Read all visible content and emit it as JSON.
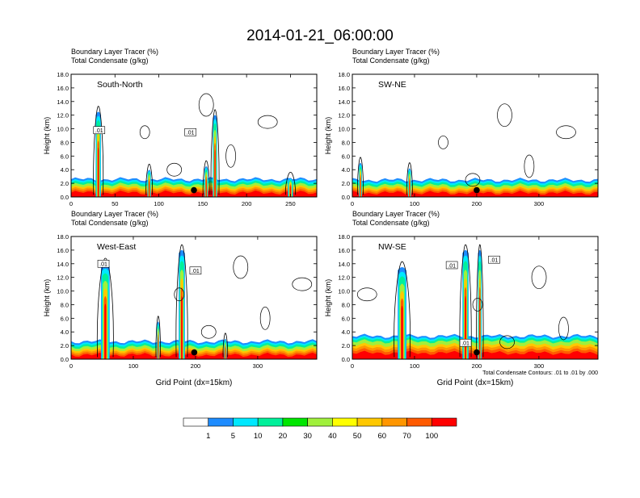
{
  "figure": {
    "title": "2014-01-21_06:00:00",
    "panel_header_line1": "Boundary Layer Tracer   (%)",
    "panel_header_line2": "Total Condensate   (g/kg)",
    "ylabel": "Height (km)",
    "xlabel": "Grid Point (dx=15km)",
    "contour_note": "Total Condensate Contours: .01 to .01 by .000",
    "contour_label": ".01"
  },
  "colorbar": {
    "labels": [
      "1",
      "5",
      "10",
      "20",
      "30",
      "40",
      "50",
      "60",
      "70",
      "100"
    ],
    "colors": [
      "#ffffff",
      "#1e8cff",
      "#00e8ff",
      "#00f09a",
      "#00e600",
      "#a0f03c",
      "#ffff00",
      "#ffc800",
      "#ff9600",
      "#ff5a00",
      "#ff0000"
    ]
  },
  "chart_data": [
    {
      "type": "heatmap",
      "panel_label": "South-North",
      "xlim": [
        0,
        280
      ],
      "ylim": [
        0,
        18
      ],
      "xticks": [
        0,
        50,
        100,
        150,
        200,
        250
      ],
      "yticks": [
        "0.0",
        "2.0",
        "4.0",
        "6.0",
        "8.0",
        "10.0",
        "12.0",
        "14.0",
        "16.0",
        "18.0"
      ],
      "marker_x": 140,
      "boundary_layer_top_km": 1.8,
      "plumes": [
        {
          "x": 31,
          "top_km": 12.5,
          "width": 6
        },
        {
          "x": 89,
          "top_km": 4.0,
          "width": 4
        },
        {
          "x": 154,
          "top_km": 4.5,
          "width": 4
        },
        {
          "x": 164,
          "top_km": 12.0,
          "width": 5
        },
        {
          "x": 250,
          "top_km": 2.8,
          "width": 6
        }
      ],
      "contour_labels_at": [
        {
          "x": 32,
          "y_km": 9.8
        },
        {
          "x": 136,
          "y_km": 9.5
        }
      ]
    },
    {
      "type": "heatmap",
      "panel_label": "SW-NE",
      "xlim": [
        0,
        395
      ],
      "ylim": [
        0,
        18
      ],
      "xticks": [
        0,
        100,
        200,
        300
      ],
      "yticks": [
        "0.0",
        "2.0",
        "4.0",
        "6.0",
        "8.0",
        "10.0",
        "12.0",
        "14.0",
        "16.0",
        "18.0"
      ],
      "marker_x": 200,
      "boundary_layer_top_km": 1.7,
      "plumes": [
        {
          "x": 13,
          "top_km": 5.0,
          "width": 5
        },
        {
          "x": 92,
          "top_km": 4.2,
          "width": 5
        }
      ],
      "contour_labels_at": []
    },
    {
      "type": "heatmap",
      "panel_label": "West-East",
      "xlim": [
        0,
        395
      ],
      "ylim": [
        0,
        18
      ],
      "xticks": [
        0,
        100,
        200,
        300
      ],
      "yticks": [
        "0.0",
        "2.0",
        "4.0",
        "6.0",
        "8.0",
        "10.0",
        "12.0",
        "14.0",
        "16.0",
        "18.0"
      ],
      "marker_x": 198,
      "boundary_layer_top_km": 1.8,
      "plumes": [
        {
          "x": 55,
          "top_km": 14.0,
          "width": 14
        },
        {
          "x": 140,
          "top_km": 5.5,
          "width": 4
        },
        {
          "x": 178,
          "top_km": 16.0,
          "width": 10
        },
        {
          "x": 248,
          "top_km": 3.0,
          "width": 4
        }
      ],
      "contour_labels_at": [
        {
          "x": 52,
          "y_km": 14.0
        },
        {
          "x": 200,
          "y_km": 13.0
        }
      ]
    },
    {
      "type": "heatmap",
      "panel_label": "NW-SE",
      "xlim": [
        0,
        395
      ],
      "ylim": [
        0,
        18
      ],
      "xticks": [
        0,
        100,
        200,
        300
      ],
      "yticks": [
        "0.0",
        "2.0",
        "4.0",
        "6.0",
        "8.0",
        "10.0",
        "12.0",
        "14.0",
        "16.0",
        "18.0"
      ],
      "marker_x": 200,
      "boundary_layer_top_km": 2.6,
      "plumes": [
        {
          "x": 80,
          "top_km": 13.5,
          "width": 14
        },
        {
          "x": 182,
          "top_km": 16.0,
          "width": 10
        },
        {
          "x": 205,
          "top_km": 16.0,
          "width": 6
        }
      ],
      "contour_labels_at": [
        {
          "x": 160,
          "y_km": 13.8
        },
        {
          "x": 228,
          "y_km": 14.6
        },
        {
          "x": 182,
          "y_km": 2.4
        }
      ]
    }
  ]
}
